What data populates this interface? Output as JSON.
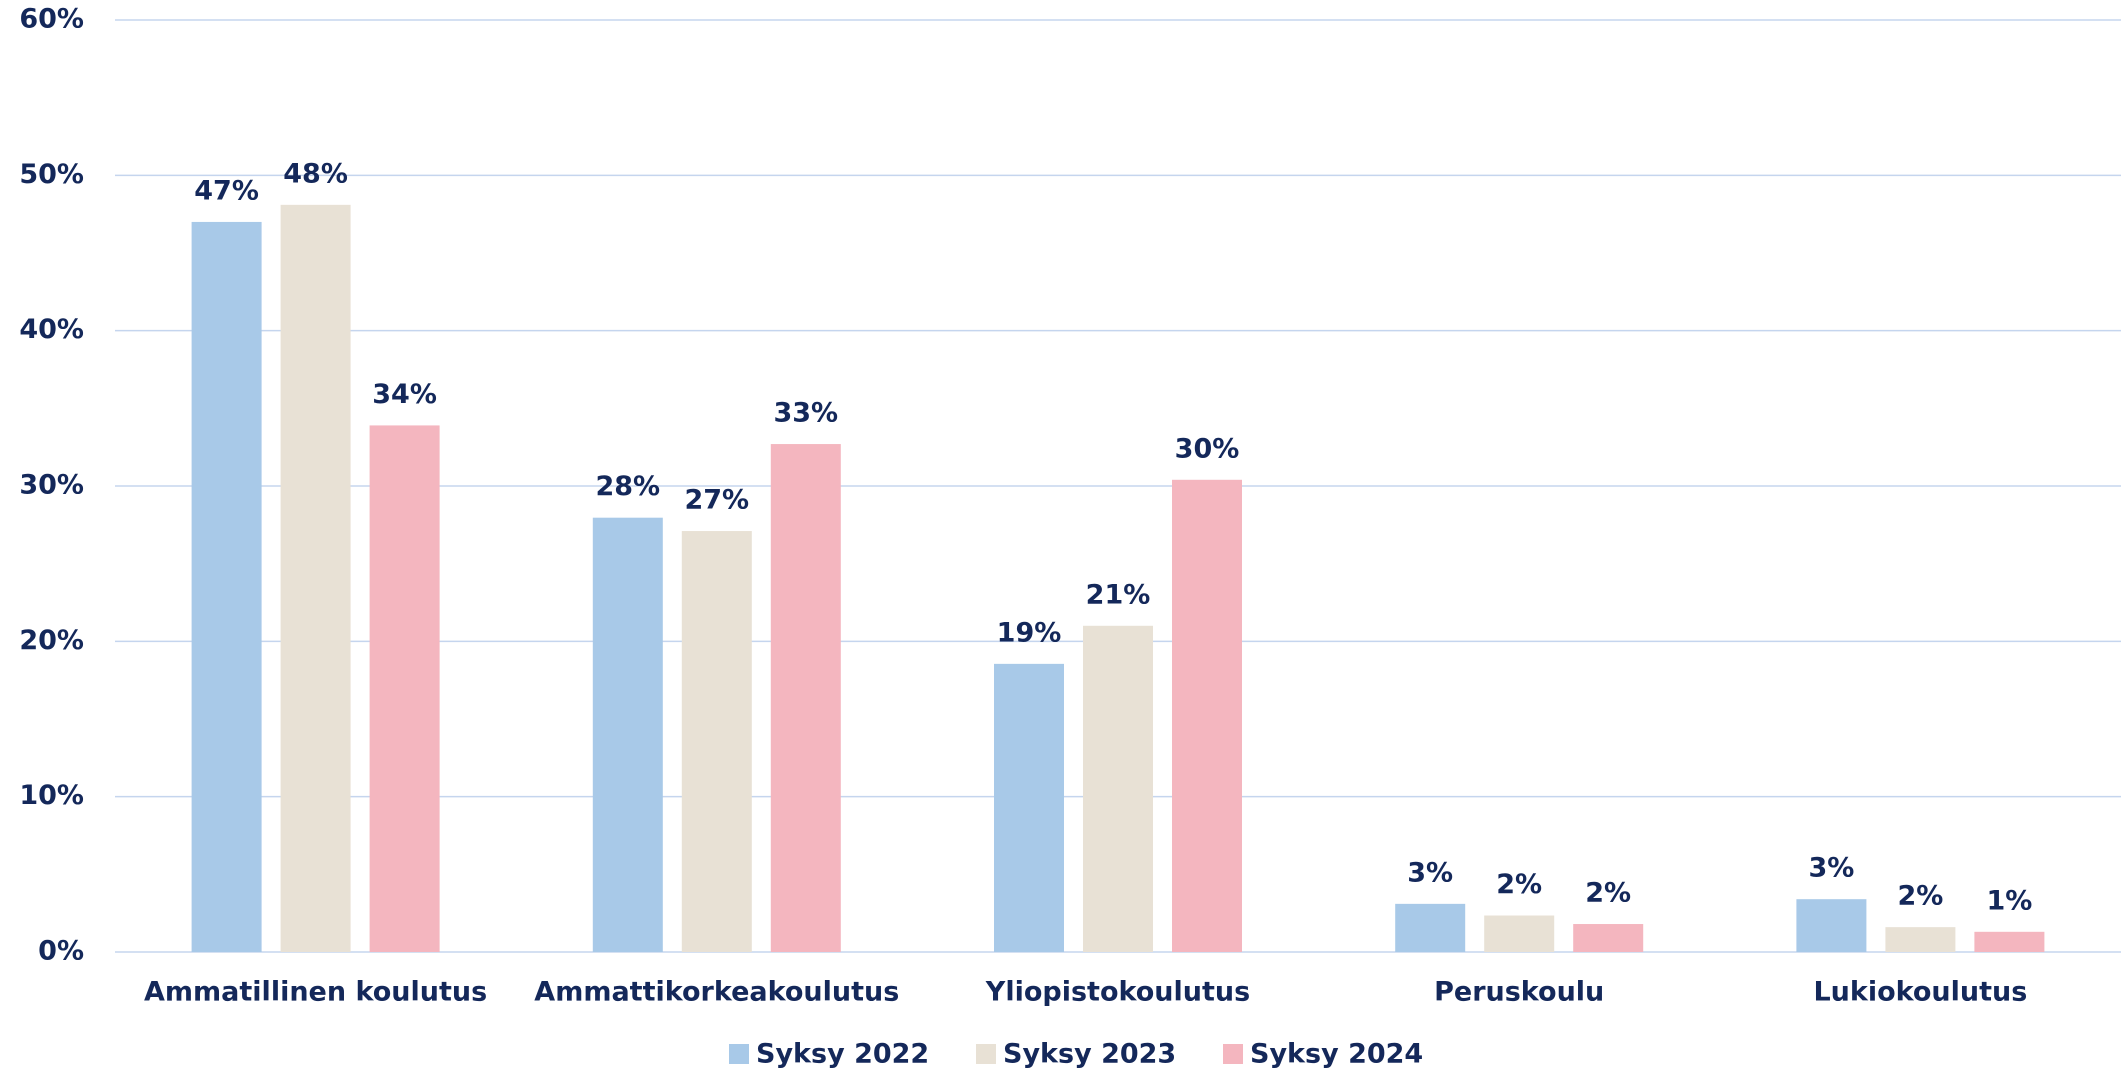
{
  "chart_data": {
    "type": "bar",
    "categories": [
      "Ammatillinen koulutus",
      "Ammattikorkeakoulutus",
      "Yliopistokoulutus",
      "Peruskoulu",
      "Lukiokoulutus"
    ],
    "series": [
      {
        "name": "Syksy 2022",
        "color": "#a8c9e8",
        "values": [
          47.0,
          27.96,
          18.55,
          3.1,
          3.4
        ],
        "value_labels": [
          "47%",
          "28%",
          "19%",
          "3%",
          "3%"
        ]
      },
      {
        "name": "Syksy 2023",
        "color": "#e8e1d5",
        "values": [
          48.1,
          27.1,
          21.0,
          2.35,
          1.6
        ],
        "value_labels": [
          "48%",
          "27%",
          "21%",
          "2%",
          "2%"
        ]
      },
      {
        "name": "Syksy 2024",
        "color": "#f4b6bf",
        "values": [
          33.9,
          32.7,
          30.4,
          1.8,
          1.3
        ],
        "value_labels": [
          "34%",
          "33%",
          "30%",
          "2%",
          "1%"
        ]
      }
    ],
    "ylim": [
      0,
      60
    ],
    "yticks": [
      {
        "value": 0,
        "label": "0%"
      },
      {
        "value": 10,
        "label": "10%"
      },
      {
        "value": 20,
        "label": "20%"
      },
      {
        "value": 30,
        "label": "30%"
      },
      {
        "value": 40,
        "label": "40%"
      },
      {
        "value": 50,
        "label": "50%"
      },
      {
        "value": 60,
        "label": "60%"
      }
    ],
    "grid": true,
    "legend": "bottom"
  }
}
